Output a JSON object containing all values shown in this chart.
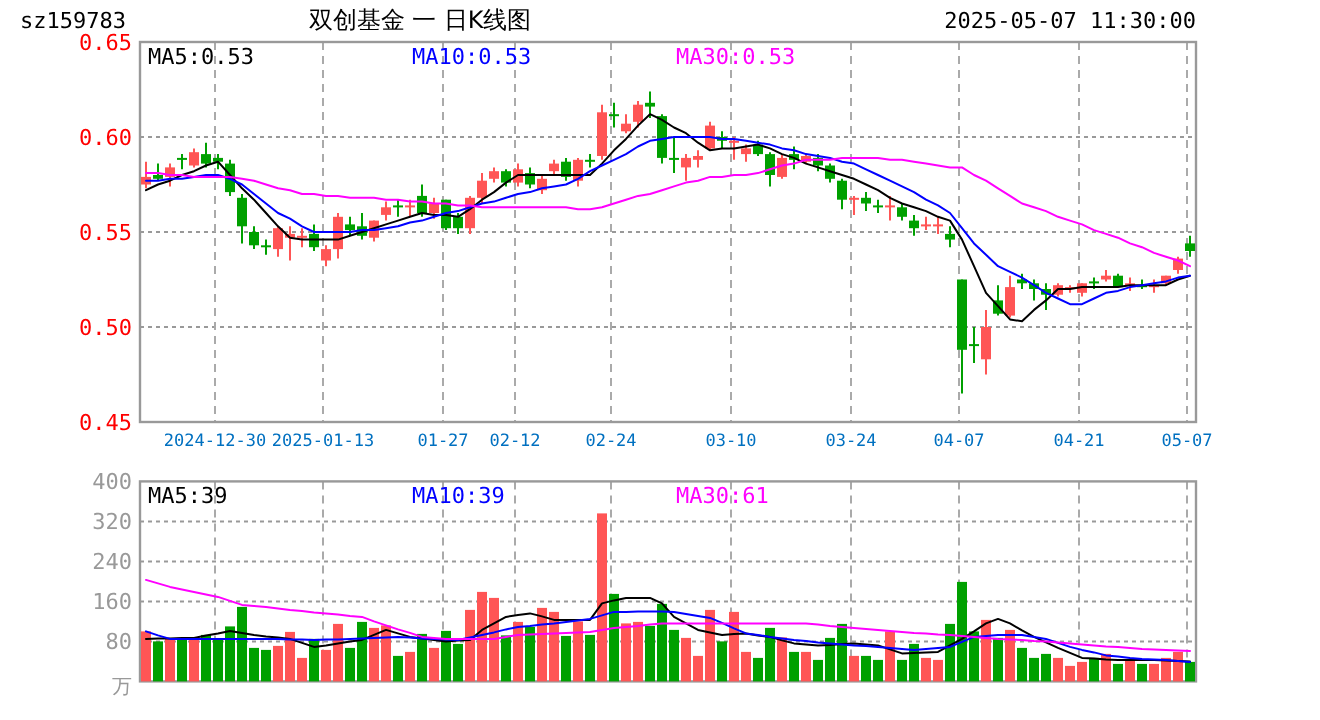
{
  "chart_data": [
    {
      "type": "candlestick",
      "title": "双创基金 一 日K线图",
      "annotations": [
        "sz159783",
        "2025-05-07 11:30:00"
      ],
      "categories": [
        null,
        null,
        null,
        null,
        null,
        null,
        "2024-12-30",
        null,
        null,
        null,
        null,
        null,
        null,
        null,
        null,
        "2025-01-13",
        null,
        null,
        null,
        null,
        null,
        null,
        null,
        null,
        null,
        "01-27",
        null,
        null,
        null,
        null,
        null,
        "02-12",
        null,
        null,
        null,
        null,
        null,
        null,
        null,
        "02-24",
        null,
        null,
        null,
        null,
        null,
        null,
        null,
        null,
        null,
        "03-10",
        null,
        null,
        null,
        null,
        null,
        null,
        null,
        null,
        null,
        "03-24",
        null,
        null,
        null,
        null,
        null,
        null,
        null,
        null,
        "04-07",
        null,
        null,
        null,
        null,
        null,
        null,
        null,
        null,
        null,
        "04-21",
        null,
        null,
        null,
        null,
        null,
        null,
        null,
        null,
        "05-07"
      ],
      "ohlc": [
        [
          0.575,
          0.587,
          0.573,
          0.579
        ],
        [
          0.58,
          0.586,
          0.577,
          0.578
        ],
        [
          0.579,
          0.586,
          0.574,
          0.584
        ],
        [
          0.589,
          0.591,
          0.583,
          0.588
        ],
        [
          0.585,
          0.594,
          0.584,
          0.592
        ],
        [
          0.591,
          0.597,
          0.584,
          0.586
        ],
        [
          0.589,
          0.591,
          0.583,
          0.587
        ],
        [
          0.586,
          0.588,
          0.569,
          0.571
        ],
        [
          0.568,
          0.57,
          0.544,
          0.553
        ],
        [
          0.55,
          0.553,
          0.541,
          0.543
        ],
        [
          0.543,
          0.546,
          0.538,
          0.542
        ],
        [
          0.541,
          0.553,
          0.537,
          0.552
        ],
        [
          0.547,
          0.553,
          0.535,
          0.549
        ],
        [
          0.547,
          0.552,
          0.542,
          0.548
        ],
        [
          0.549,
          0.554,
          0.54,
          0.542
        ],
        [
          0.535,
          0.543,
          0.532,
          0.541
        ],
        [
          0.541,
          0.56,
          0.536,
          0.558
        ],
        [
          0.554,
          0.558,
          0.548,
          0.551
        ],
        [
          0.553,
          0.56,
          0.546,
          0.548
        ],
        [
          0.547,
          0.556,
          0.545,
          0.556
        ],
        [
          0.559,
          0.566,
          0.556,
          0.563
        ],
        [
          0.564,
          0.567,
          0.558,
          0.563
        ],
        [
          0.563,
          0.567,
          0.558,
          0.564
        ],
        [
          0.569,
          0.575,
          0.558,
          0.56
        ],
        [
          0.56,
          0.568,
          0.557,
          0.565
        ],
        [
          0.567,
          0.567,
          0.551,
          0.552
        ],
        [
          0.558,
          0.56,
          0.549,
          0.552
        ],
        [
          0.552,
          0.569,
          0.549,
          0.568
        ],
        [
          0.568,
          0.581,
          0.565,
          0.577
        ],
        [
          0.578,
          0.584,
          0.576,
          0.582
        ],
        [
          0.582,
          0.583,
          0.574,
          0.576
        ],
        [
          0.576,
          0.586,
          0.574,
          0.583
        ],
        [
          0.581,
          0.584,
          0.573,
          0.575
        ],
        [
          0.572,
          0.58,
          0.57,
          0.578
        ],
        [
          0.582,
          0.588,
          0.58,
          0.586
        ],
        [
          0.587,
          0.589,
          0.577,
          0.579
        ],
        [
          0.577,
          0.589,
          0.574,
          0.588
        ],
        [
          0.588,
          0.591,
          0.584,
          0.587
        ],
        [
          0.59,
          0.617,
          0.588,
          0.613
        ],
        [
          0.612,
          0.618,
          0.605,
          0.611
        ],
        [
          0.603,
          0.612,
          0.602,
          0.607
        ],
        [
          0.608,
          0.619,
          0.605,
          0.617
        ],
        [
          0.618,
          0.624,
          0.61,
          0.616
        ],
        [
          0.611,
          0.612,
          0.586,
          0.589
        ],
        [
          0.589,
          0.6,
          0.581,
          0.588
        ],
        [
          0.584,
          0.591,
          0.577,
          0.589
        ],
        [
          0.588,
          0.593,
          0.584,
          0.59
        ],
        [
          0.594,
          0.608,
          0.593,
          0.606
        ],
        [
          0.6,
          0.603,
          0.594,
          0.598
        ],
        [
          0.597,
          0.6,
          0.588,
          0.598
        ],
        [
          0.591,
          0.596,
          0.587,
          0.594
        ],
        [
          0.596,
          0.598,
          0.59,
          0.591
        ],
        [
          0.591,
          0.592,
          0.574,
          0.58
        ],
        [
          0.579,
          0.591,
          0.578,
          0.589
        ],
        [
          0.591,
          0.595,
          0.583,
          0.588
        ],
        [
          0.587,
          0.591,
          0.586,
          0.59
        ],
        [
          0.589,
          0.591,
          0.582,
          0.585
        ],
        [
          0.585,
          0.586,
          0.576,
          0.578
        ],
        [
          0.577,
          0.578,
          0.562,
          0.567
        ],
        [
          0.567,
          0.569,
          0.559,
          0.568
        ],
        [
          0.568,
          0.571,
          0.561,
          0.565
        ],
        [
          0.564,
          0.567,
          0.56,
          0.563
        ],
        [
          0.563,
          0.569,
          0.556,
          0.564
        ],
        [
          0.563,
          0.565,
          0.556,
          0.558
        ],
        [
          0.556,
          0.559,
          0.548,
          0.552
        ],
        [
          0.553,
          0.558,
          0.551,
          0.554
        ],
        [
          0.553,
          0.558,
          0.549,
          0.554
        ],
        [
          0.549,
          0.553,
          0.542,
          0.546
        ],
        [
          0.525,
          0.525,
          0.465,
          0.488
        ],
        [
          0.491,
          0.5,
          0.481,
          0.49
        ],
        [
          0.483,
          0.509,
          0.475,
          0.5
        ],
        [
          0.514,
          0.522,
          0.506,
          0.507
        ],
        [
          0.506,
          0.527,
          0.505,
          0.521
        ],
        [
          0.525,
          0.528,
          0.52,
          0.523
        ],
        [
          0.523,
          0.525,
          0.514,
          0.52
        ],
        [
          0.52,
          0.523,
          0.509,
          0.517
        ],
        [
          0.517,
          0.523,
          0.516,
          0.522
        ],
        [
          0.52,
          0.522,
          0.518,
          0.521
        ],
        [
          0.518,
          0.523,
          0.516,
          0.523
        ],
        [
          0.524,
          0.526,
          0.52,
          0.523
        ],
        [
          0.525,
          0.53,
          0.524,
          0.527
        ],
        [
          0.527,
          0.528,
          0.521,
          0.521
        ],
        [
          0.522,
          0.526,
          0.519,
          0.523
        ],
        [
          0.522,
          0.525,
          0.52,
          0.521
        ],
        [
          0.521,
          0.525,
          0.518,
          0.522
        ],
        [
          0.523,
          0.527,
          0.522,
          0.527
        ],
        [
          0.53,
          0.537,
          0.528,
          0.536
        ],
        [
          0.544,
          0.548,
          0.537,
          0.54
        ]
      ],
      "colors": [
        "#ff5555",
        "#00a000",
        "#ff5555",
        "#00a000",
        "#ff5555",
        "#00a000",
        "#00a000",
        "#00a000",
        "#00a000",
        "#00a000",
        "#00a000",
        "#ff5555",
        "#ff5555",
        "#ff5555",
        "#00a000",
        "#ff5555",
        "#ff5555",
        "#00a000",
        "#00a000",
        "#ff5555",
        "#ff5555",
        "#00a000",
        "#ff5555",
        "#00a000",
        "#ff5555",
        "#00a000",
        "#00a000",
        "#ff5555",
        "#ff5555",
        "#ff5555",
        "#00a000",
        "#ff5555",
        "#00a000",
        "#ff5555",
        "#ff5555",
        "#00a000",
        "#ff5555",
        "#00a000",
        "#ff5555",
        "#00a000",
        "#ff5555",
        "#ff5555",
        "#00a000",
        "#00a000",
        "#00a000",
        "#ff5555",
        "#ff5555",
        "#ff5555",
        "#00a000",
        "#ff5555",
        "#ff5555",
        "#00a000",
        "#00a000",
        "#ff5555",
        "#00a000",
        "#ff5555",
        "#00a000",
        "#00a000",
        "#00a000",
        "#ff5555",
        "#00a000",
        "#00a000",
        "#ff5555",
        "#00a000",
        "#00a000",
        "#ff5555",
        "#ff5555",
        "#00a000",
        "#00a000",
        "#00a000",
        "#ff5555",
        "#00a000",
        "#ff5555",
        "#00a000",
        "#00a000",
        "#00a000",
        "#ff5555",
        "#ff5555",
        "#ff5555",
        "#00a000",
        "#ff5555",
        "#00a000",
        "#ff5555",
        "#00a000",
        "#ff5555",
        "#ff5555",
        "#ff5555",
        "#00a000"
      ],
      "series": [
        {
          "name": "MA5:0.53",
          "type": "line",
          "color": "#000000",
          "values": [
            0.572,
            0.575,
            0.577,
            0.58,
            0.582,
            0.585,
            0.587,
            0.58,
            0.573,
            0.567,
            0.56,
            0.553,
            0.547,
            0.546,
            0.546,
            0.546,
            0.546,
            0.548,
            0.55,
            0.552,
            0.554,
            0.556,
            0.558,
            0.56,
            0.559,
            0.559,
            0.558,
            0.562,
            0.567,
            0.571,
            0.576,
            0.58,
            0.58,
            0.58,
            0.58,
            0.58,
            0.58,
            0.58,
            0.586,
            0.593,
            0.599,
            0.606,
            0.612,
            0.609,
            0.605,
            0.602,
            0.597,
            0.593,
            0.594,
            0.594,
            0.595,
            0.596,
            0.594,
            0.591,
            0.589,
            0.586,
            0.584,
            0.582,
            0.58,
            0.578,
            0.575,
            0.572,
            0.568,
            0.565,
            0.563,
            0.561,
            0.558,
            0.556,
            0.546,
            0.532,
            0.518,
            0.511,
            0.504,
            0.503,
            0.509,
            0.514,
            0.52,
            0.52,
            0.521,
            0.521,
            0.521,
            0.521,
            0.522,
            0.522,
            0.522,
            0.522,
            0.525,
            0.527
          ]
        },
        {
          "name": "MA10:0.53",
          "type": "line",
          "color": "#0000ff",
          "values": [
            0.577,
            0.577,
            0.578,
            0.578,
            0.579,
            0.58,
            0.58,
            0.578,
            0.575,
            0.57,
            0.565,
            0.56,
            0.557,
            0.553,
            0.55,
            0.55,
            0.55,
            0.55,
            0.551,
            0.551,
            0.552,
            0.553,
            0.555,
            0.556,
            0.558,
            0.56,
            0.561,
            0.563,
            0.565,
            0.566,
            0.568,
            0.57,
            0.571,
            0.573,
            0.574,
            0.575,
            0.578,
            0.582,
            0.585,
            0.588,
            0.591,
            0.595,
            0.598,
            0.599,
            0.6,
            0.6,
            0.6,
            0.6,
            0.599,
            0.599,
            0.598,
            0.597,
            0.596,
            0.594,
            0.593,
            0.591,
            0.59,
            0.589,
            0.587,
            0.586,
            0.583,
            0.58,
            0.577,
            0.574,
            0.571,
            0.567,
            0.564,
            0.56,
            0.552,
            0.544,
            0.538,
            0.532,
            0.529,
            0.526,
            0.522,
            0.518,
            0.515,
            0.512,
            0.512,
            0.515,
            0.518,
            0.519,
            0.521,
            0.522,
            0.523,
            0.524,
            0.526,
            0.527
          ]
        },
        {
          "name": "MA30:0.53",
          "type": "line",
          "color": "#ff00ff",
          "values": [
            0.581,
            0.581,
            0.58,
            0.58,
            0.579,
            0.579,
            0.579,
            0.579,
            0.578,
            0.577,
            0.575,
            0.573,
            0.572,
            0.57,
            0.57,
            0.569,
            0.569,
            0.568,
            0.568,
            0.568,
            0.567,
            0.567,
            0.566,
            0.566,
            0.565,
            0.565,
            0.564,
            0.564,
            0.563,
            0.563,
            0.563,
            0.563,
            0.563,
            0.563,
            0.563,
            0.563,
            0.562,
            0.562,
            0.563,
            0.565,
            0.567,
            0.569,
            0.57,
            0.572,
            0.574,
            0.576,
            0.577,
            0.579,
            0.579,
            0.58,
            0.58,
            0.581,
            0.583,
            0.585,
            0.586,
            0.588,
            0.588,
            0.588,
            0.589,
            0.589,
            0.589,
            0.589,
            0.588,
            0.588,
            0.587,
            0.586,
            0.585,
            0.584,
            0.584,
            0.58,
            0.577,
            0.573,
            0.569,
            0.565,
            0.563,
            0.561,
            0.558,
            0.556,
            0.554,
            0.551,
            0.549,
            0.547,
            0.544,
            0.542,
            0.539,
            0.537,
            0.535,
            0.532
          ]
        }
      ],
      "ylim": [
        0.45,
        0.65
      ],
      "yticks": [
        0.45,
        {
          "value": 0.5,
          "label": "0.50"
        },
        0.55,
        {
          "value": 0.6,
          "label": "0.60"
        },
        0.65
      ],
      "grid": true,
      "legend": "top"
    },
    {
      "type": "bar",
      "ylabel": "万",
      "categories": [
        null,
        null,
        null,
        null,
        null,
        null,
        null,
        null,
        null,
        null,
        null,
        null,
        null,
        null,
        null,
        null,
        null,
        null,
        null,
        null,
        null,
        null,
        null,
        null,
        null,
        null,
        null,
        null,
        null,
        null,
        null,
        null,
        null,
        null,
        null,
        null,
        null,
        null,
        null,
        null,
        null,
        null,
        null,
        null,
        null,
        null,
        null,
        null,
        null,
        null,
        null,
        null,
        null,
        null,
        null,
        null,
        null,
        null,
        null,
        null,
        null,
        null,
        null,
        null,
        null,
        null,
        null,
        null,
        null,
        null,
        null,
        null,
        null,
        null,
        null,
        null,
        null,
        null,
        null,
        null,
        null,
        null,
        null,
        null,
        null,
        null,
        null,
        null
      ],
      "values": [
        100,
        80,
        85,
        87,
        85,
        93,
        85,
        110,
        149,
        67,
        63,
        71,
        99,
        47,
        85,
        63,
        115,
        67,
        119,
        107,
        112,
        51,
        59,
        95,
        67,
        101,
        75,
        143,
        179,
        167,
        92,
        119,
        109,
        147,
        139,
        91,
        120,
        93,
        336,
        175,
        116,
        119,
        111,
        155,
        103,
        87,
        51,
        143,
        80,
        139,
        59,
        47,
        107,
        88,
        59,
        59,
        43,
        87,
        115,
        51,
        51,
        43,
        100,
        43,
        75,
        47,
        43,
        115,
        199,
        100,
        123,
        87,
        103,
        67,
        47,
        55,
        47,
        31,
        39,
        47,
        55,
        35,
        43,
        35,
        35,
        47,
        59,
        39
      ],
      "colors": [
        "#ff5555",
        "#00a000",
        "#ff5555",
        "#00a000",
        "#ff5555",
        "#00a000",
        "#00a000",
        "#00a000",
        "#00a000",
        "#00a000",
        "#00a000",
        "#ff5555",
        "#ff5555",
        "#ff5555",
        "#00a000",
        "#ff5555",
        "#ff5555",
        "#00a000",
        "#00a000",
        "#ff5555",
        "#ff5555",
        "#00a000",
        "#ff5555",
        "#00a000",
        "#ff5555",
        "#00a000",
        "#00a000",
        "#ff5555",
        "#ff5555",
        "#ff5555",
        "#00a000",
        "#ff5555",
        "#00a000",
        "#ff5555",
        "#ff5555",
        "#00a000",
        "#ff5555",
        "#00a000",
        "#ff5555",
        "#00a000",
        "#ff5555",
        "#ff5555",
        "#00a000",
        "#00a000",
        "#00a000",
        "#ff5555",
        "#ff5555",
        "#ff5555",
        "#00a000",
        "#ff5555",
        "#ff5555",
        "#00a000",
        "#00a000",
        "#ff5555",
        "#00a000",
        "#ff5555",
        "#00a000",
        "#00a000",
        "#00a000",
        "#ff5555",
        "#00a000",
        "#00a000",
        "#ff5555",
        "#00a000",
        "#00a000",
        "#ff5555",
        "#ff5555",
        "#00a000",
        "#00a000",
        "#00a000",
        "#ff5555",
        "#00a000",
        "#ff5555",
        "#00a000",
        "#00a000",
        "#00a000",
        "#ff5555",
        "#ff5555",
        "#ff5555",
        "#00a000",
        "#ff5555",
        "#00a000",
        "#ff5555",
        "#00a000",
        "#ff5555",
        "#ff5555",
        "#ff5555",
        "#00a000"
      ],
      "series": [
        {
          "name": "MA5:39",
          "type": "line",
          "color": "#000000",
          "values": [
            85,
            86,
            86,
            87,
            87,
            92,
            96,
            101,
            97,
            93,
            90,
            88,
            85,
            77,
            69,
            72,
            76,
            80,
            83,
            93,
            103,
            96,
            89,
            86,
            83,
            80,
            82,
            83,
            103,
            116,
            129,
            133,
            136,
            130,
            123,
            123,
            123,
            123,
            156,
            162,
            167,
            167,
            167,
            156,
            129,
            116,
            103,
            98,
            93,
            95,
            96,
            92,
            89,
            82,
            76,
            74,
            72,
            73,
            75,
            76,
            74,
            72,
            64,
            56,
            57,
            58,
            59,
            72,
            85,
            100,
            116,
            125,
            116,
            102,
            89,
            78,
            67,
            57,
            47,
            46,
            44,
            43,
            43,
            43,
            43,
            42,
            41,
            40
          ]
        },
        {
          "name": "MA10:39",
          "type": "line",
          "color": "#0000ff",
          "values": [
            100,
            92,
            85,
            85,
            85,
            85,
            85,
            85,
            85,
            85,
            85,
            85,
            84,
            84,
            83,
            84,
            84,
            85,
            86,
            87,
            88,
            89,
            88,
            86,
            85,
            84,
            83,
            88,
            93,
            98,
            104,
            109,
            111,
            114,
            116,
            119,
            122,
            125,
            132,
            139,
            139,
            140,
            140,
            140,
            139,
            135,
            131,
            127,
            117,
            106,
            96,
            93,
            89,
            86,
            83,
            81,
            78,
            76,
            74,
            72,
            71,
            69,
            67,
            65,
            63,
            65,
            67,
            69,
            79,
            89,
            91,
            93,
            93,
            93,
            89,
            85,
            77,
            69,
            63,
            58,
            52,
            50,
            47,
            45,
            44,
            43,
            41,
            39
          ]
        },
        {
          "name": "MA30:61",
          "type": "line",
          "color": "#ff00ff",
          "values": [
            203,
            196,
            189,
            184,
            179,
            174,
            169,
            161,
            153,
            151,
            149,
            146,
            143,
            141,
            138,
            136,
            134,
            131,
            129,
            120,
            112,
            104,
            97,
            89,
            87,
            85,
            85,
            85,
            85,
            85,
            89,
            93,
            94,
            95,
            96,
            97,
            98,
            99,
            103,
            107,
            109,
            111,
            114,
            116,
            116,
            116,
            116,
            116,
            116,
            116,
            116,
            116,
            116,
            116,
            116,
            116,
            114,
            111,
            109,
            107,
            105,
            103,
            101,
            99,
            97,
            96,
            94,
            93,
            91,
            89,
            87,
            85,
            84,
            83,
            81,
            80,
            78,
            76,
            74,
            72,
            70,
            69,
            67,
            65,
            64,
            63,
            62,
            61
          ]
        }
      ],
      "ylim": [
        0,
        400
      ],
      "yticks": [
        80,
        160,
        240,
        320,
        400
      ],
      "grid": true,
      "legend": "top",
      "tick_labels": "y"
    }
  ]
}
